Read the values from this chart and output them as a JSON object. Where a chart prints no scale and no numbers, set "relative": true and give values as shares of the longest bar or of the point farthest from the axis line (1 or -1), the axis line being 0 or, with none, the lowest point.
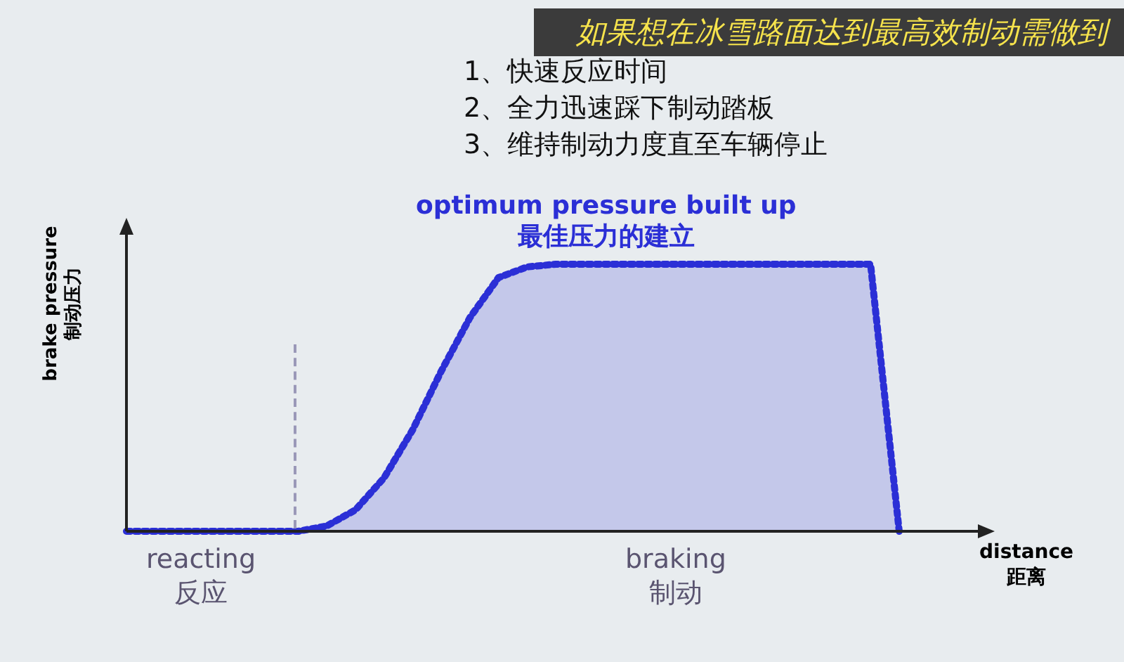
{
  "chart_data": {
    "type": "area",
    "title": "如果想在冰雪路面达到最高效制动需做到",
    "ylabel": "brake pressure\n制动压力",
    "xlabel": "distance\n距离",
    "relative": true,
    "line_style": "dotted",
    "annotations": [
      "1、快速反应时间",
      "2、全力迅速踩下制动踏板",
      "3、维持制动力度直至车辆停止",
      "optimum pressure  built up\n最佳压力的建立",
      "reacting\n反应",
      "braking\n制动"
    ],
    "categories": [
      null,
      null,
      null,
      null,
      null,
      null,
      null,
      null,
      null,
      null,
      null,
      null,
      null,
      null,
      null,
      null,
      null,
      null,
      null,
      null,
      null,
      null,
      null,
      null,
      null,
      null,
      null,
      null
    ],
    "series": [
      {
        "color": "#2b2fd6",
        "values": [
          0,
          0,
          0,
          0,
          0,
          0,
          0,
          0.02,
          0.08,
          0.2,
          0.38,
          0.6,
          0.8,
          0.95,
          0.99,
          1,
          1,
          1,
          1,
          1,
          1,
          1,
          1,
          1,
          1,
          1,
          1,
          0
        ]
      }
    ]
  }
}
